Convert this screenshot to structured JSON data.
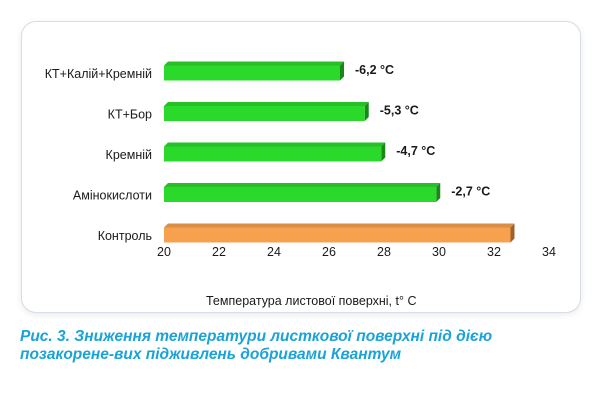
{
  "chart_data": {
    "type": "bar",
    "orientation": "horizontal",
    "categories": [
      "КТ+Калій+Кремній",
      "КТ+Бор",
      "Кремній",
      "Амінокислоти",
      "Контроль"
    ],
    "values": [
      26.4,
      27.3,
      27.9,
      29.9,
      32.6
    ],
    "data_labels": [
      "-6,2 °C",
      "-5,3 °C",
      "-4,7 °C",
      "-2,7 °C",
      ""
    ],
    "bar_colors": [
      "#2bd92b",
      "#2bd92b",
      "#2bd92b",
      "#2bd92b",
      "#f7a14f"
    ],
    "xlabel": "Температура листової поверхні, t° C",
    "ylabel": "",
    "title": "",
    "xlim": [
      20,
      34
    ],
    "xticks": [
      "20",
      "22",
      "24",
      "26",
      "28",
      "30",
      "32",
      "34"
    ],
    "grid": false,
    "legend": "none"
  },
  "caption": {
    "text": "Рис. 3. Зниження температури листкової поверхні під дією позакорене-вих підживлень добривами Квантум"
  }
}
